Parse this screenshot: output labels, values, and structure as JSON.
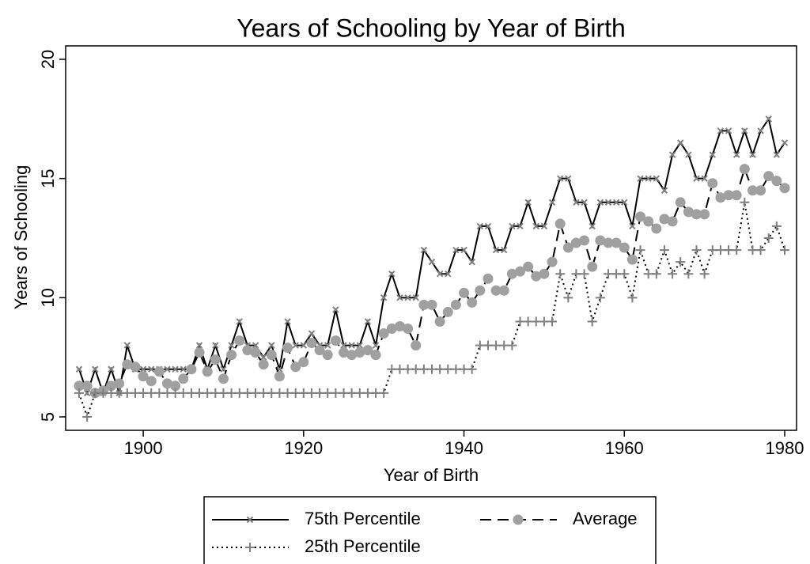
{
  "chart_data": {
    "type": "line",
    "title": "Years of Schooling by Year of Birth",
    "x_label": "Year of Birth",
    "y_label": "Years of Schooling",
    "x": [
      1892,
      1893,
      1894,
      1895,
      1896,
      1897,
      1898,
      1899,
      1900,
      1901,
      1902,
      1903,
      1904,
      1905,
      1906,
      1907,
      1908,
      1909,
      1910,
      1911,
      1912,
      1913,
      1914,
      1915,
      1916,
      1917,
      1918,
      1919,
      1920,
      1921,
      1922,
      1923,
      1924,
      1925,
      1926,
      1927,
      1928,
      1929,
      1930,
      1931,
      1932,
      1933,
      1934,
      1935,
      1936,
      1937,
      1938,
      1939,
      1940,
      1941,
      1942,
      1943,
      1944,
      1945,
      1946,
      1947,
      1948,
      1949,
      1950,
      1951,
      1952,
      1953,
      1954,
      1955,
      1956,
      1957,
      1958,
      1959,
      1960,
      1961,
      1962,
      1963,
      1964,
      1965,
      1966,
      1967,
      1968,
      1969,
      1970,
      1971,
      1972,
      1973,
      1974,
      1975,
      1976,
      1977,
      1978,
      1979,
      1980
    ],
    "series": [
      {
        "name": "75th Percentile",
        "color": "#000000",
        "marker_color": "#7f7f7f",
        "dash": "solid",
        "marker": "x",
        "values": [
          7,
          6,
          7,
          6,
          7,
          6,
          8,
          7,
          7,
          7,
          7,
          7,
          7,
          7,
          7,
          8,
          7,
          8,
          7,
          8,
          9,
          8,
          8,
          7.5,
          8,
          7,
          9,
          8,
          8,
          8.5,
          8,
          8,
          9.5,
          8,
          8,
          8,
          9,
          8,
          10,
          11,
          10,
          10,
          10,
          12,
          11.5,
          11,
          11,
          12,
          12,
          11.5,
          13,
          13,
          12,
          12,
          13,
          13,
          14,
          13,
          13,
          14,
          15,
          15,
          14,
          14,
          13,
          14,
          14,
          14,
          14,
          13,
          15,
          15,
          15,
          14.5,
          16,
          16.5,
          16,
          15,
          15,
          16,
          17,
          17,
          16,
          17,
          16,
          17,
          17.5,
          16,
          16.5
        ]
      },
      {
        "name": "Average",
        "color": "#000000",
        "marker_color": "#a0a0a0",
        "dash": "dashed",
        "marker": "circle",
        "values": [
          6.3,
          6.3,
          6.0,
          6.1,
          6.3,
          6.4,
          7.2,
          7.1,
          6.7,
          6.5,
          6.9,
          6.4,
          6.3,
          6.6,
          7.0,
          7.7,
          6.9,
          7.4,
          6.6,
          7.6,
          8.2,
          7.8,
          7.7,
          7.2,
          7.6,
          6.7,
          7.9,
          7.1,
          7.3,
          8.1,
          7.8,
          7.6,
          8.2,
          7.7,
          7.6,
          7.7,
          7.8,
          7.6,
          8.5,
          8.7,
          8.8,
          8.7,
          8.0,
          9.7,
          9.7,
          9.0,
          9.4,
          9.7,
          10.2,
          9.8,
          10.3,
          10.8,
          10.3,
          10.3,
          11.0,
          11.1,
          11.3,
          10.9,
          11.0,
          11.5,
          13.1,
          12.1,
          12.3,
          12.4,
          11.3,
          12.4,
          12.3,
          12.3,
          12.1,
          11.6,
          13.4,
          13.2,
          12.9,
          13.3,
          13.2,
          14.0,
          13.6,
          13.5,
          13.5,
          14.8,
          14.2,
          14.3,
          14.3,
          15.4,
          14.5,
          14.5,
          15.1,
          14.9,
          14.6
        ]
      },
      {
        "name": "25th Percentile",
        "color": "#000000",
        "marker_color": "#7f7f7f",
        "dash": "dotted",
        "marker": "plus",
        "values": [
          6,
          5,
          6,
          6,
          6,
          6,
          6,
          6,
          6,
          6,
          6,
          6,
          6,
          6,
          6,
          6,
          6,
          6,
          6,
          6,
          6,
          6,
          6,
          6,
          6,
          6,
          6,
          6,
          6,
          6,
          6,
          6,
          6,
          6,
          6,
          6,
          6,
          6,
          6,
          7,
          7,
          7,
          7,
          7,
          7,
          7,
          7,
          7,
          7,
          7,
          8,
          8,
          8,
          8,
          8,
          9,
          9,
          9,
          9,
          9,
          11,
          10,
          11,
          11,
          9,
          10,
          11,
          11,
          11,
          10,
          12,
          11,
          11,
          12,
          11,
          11.5,
          11,
          12,
          11,
          12,
          12,
          12,
          12,
          14,
          12,
          12,
          12.5,
          13,
          12
        ]
      }
    ],
    "xlim": [
      1892,
      1980
    ],
    "xticks": [
      1900,
      1920,
      1940,
      1960,
      1980
    ],
    "ylim": [
      5,
      20
    ],
    "yticks": [
      5,
      10,
      15,
      20
    ],
    "grid": false,
    "legend": "bottom"
  }
}
